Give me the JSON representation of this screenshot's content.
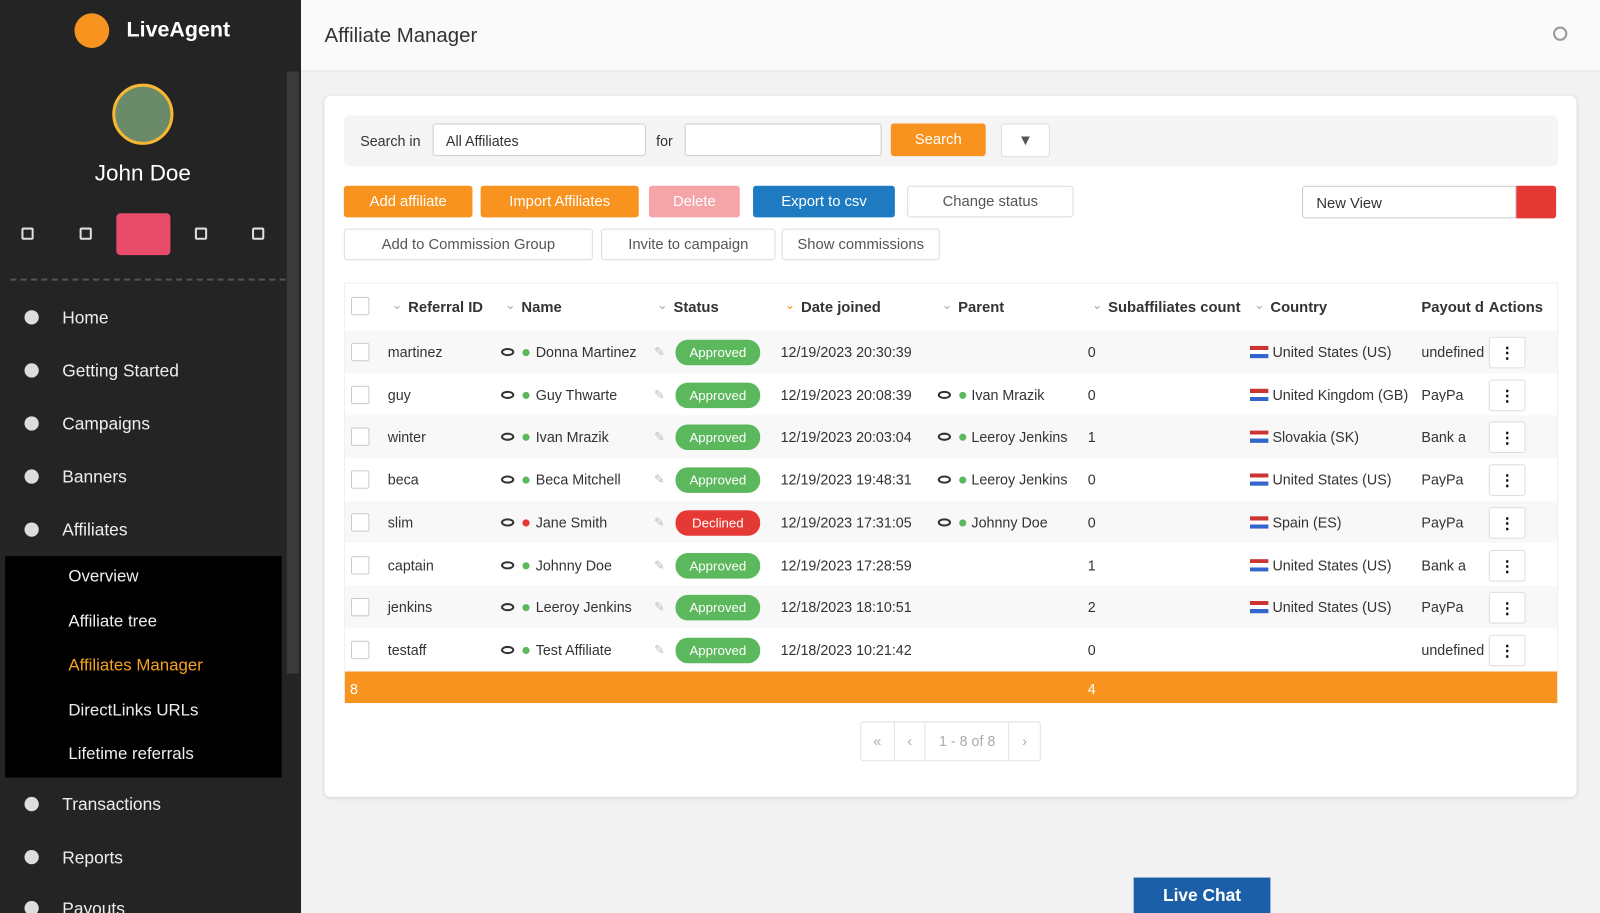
{
  "logo": "LiveAgent",
  "user": {
    "name": "John Doe"
  },
  "menu": [
    {
      "label": "Home"
    },
    {
      "label": "Getting Started"
    },
    {
      "label": "Campaigns"
    },
    {
      "label": "Banners"
    },
    {
      "label": "Affiliates",
      "submenu": [
        "Overview",
        "Affiliate tree",
        "Affiliates Manager",
        "DirectLinks URLs",
        "Lifetime referrals"
      ]
    },
    {
      "label": "Transactions"
    },
    {
      "label": "Reports"
    },
    {
      "label": "Payouts"
    }
  ],
  "header": {
    "title": "Affiliate Manager"
  },
  "search": {
    "label": "Search in",
    "scope": "All Affiliates",
    "for": "for",
    "button": "Search"
  },
  "actions": [
    "Add affiliate",
    "Import Affiliates",
    "Delete",
    "Export to csv",
    "Change status"
  ],
  "view": "New View",
  "actions2": [
    "Add to Commission Group",
    "Invite to campaign",
    "Show commissions"
  ],
  "table": {
    "columns": [
      "Referral ID",
      "Name",
      "Status",
      "Date joined",
      "Parent",
      "Subaffiliates count",
      "Country",
      "Payout d",
      "Actions"
    ],
    "rows": [
      {
        "referral_id": "martinez",
        "name": "Donna Martinez",
        "status": "Approved",
        "status_color": "#5cb85c",
        "date_joined": "12/19/2023 20:30:39",
        "subaffiliates": 0,
        "country": "United States (US)",
        "payout": "undefined"
      },
      {
        "referral_id": "guy",
        "name": "Guy Thwarte",
        "status": "Approved",
        "status_color": "#5cb85c",
        "date_joined": "12/19/2023 20:08:39",
        "parent": "Ivan Mrazik",
        "subaffiliates": 0,
        "country": "United Kingdom (GB)",
        "payout": "PayPa"
      },
      {
        "referral_id": "winter",
        "name": "Ivan Mrazik",
        "status": "Approved",
        "status_color": "#5cb85c",
        "date_joined": "12/19/2023 20:03:04",
        "parent": "Leeroy Jenkins",
        "subaffiliates": 1,
        "country": "Slovakia (SK)",
        "payout": "Bank a"
      },
      {
        "referral_id": "beca",
        "name": "Beca Mitchell",
        "status": "Approved",
        "status_color": "#5cb85c",
        "date_joined": "12/19/2023 19:48:31",
        "parent": "Leeroy Jenkins",
        "subaffiliates": 0,
        "country": "United States (US)",
        "payout": "PayPa"
      },
      {
        "referral_id": "slim",
        "name": "Jane Smith",
        "status": "Declined",
        "status_color": "#e53935",
        "date_joined": "12/19/2023 17:31:05",
        "parent": "Johnny Doe",
        "subaffiliates": 0,
        "country": "Spain (ES)",
        "payout": "PayPa"
      },
      {
        "referral_id": "captain",
        "name": "Johnny Doe",
        "status": "Approved",
        "status_color": "#5cb85c",
        "date_joined": "12/19/2023 17:28:59",
        "subaffiliates": 1,
        "country": "United States (US)",
        "payout": "Bank a"
      },
      {
        "referral_id": "jenkins",
        "name": "Leeroy Jenkins",
        "status": "Approved",
        "status_color": "#5cb85c",
        "date_joined": "12/18/2023 18:10:51",
        "subaffiliates": 2,
        "country": "United States (US)",
        "payout": "PayPa"
      },
      {
        "referral_id": "testaff",
        "name": "Test Affiliate",
        "status": "Approved",
        "status_color": "#5cb85c",
        "date_joined": "12/18/2023 10:21:42",
        "subaffiliates": 0,
        "payout": "undefined"
      }
    ],
    "totals": {
      "count": 8,
      "subaffiliates": 4
    }
  },
  "pagination": "1 - 8 of 8",
  "live_chat": "Live Chat"
}
